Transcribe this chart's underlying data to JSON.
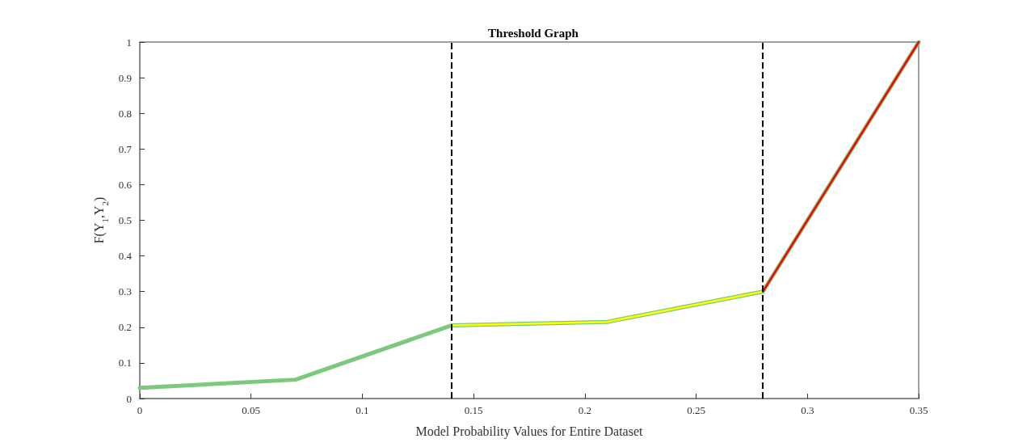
{
  "chart_data": {
    "type": "line",
    "title": "Threshold Graph",
    "xlabel": "Model Probability Values for Entire Dataset",
    "ylabel": "F(Y$_{1}$,Y$_{2}$)",
    "series": [
      {
        "color": "#7cc87c",
        "x": [
          0,
          0.07,
          0.14,
          0.21,
          0.28,
          0.35
        ],
        "values": [
          0.03,
          0.053,
          0.205,
          0.215,
          0.3,
          1.0
        ]
      },
      {
        "color": "#ffff00",
        "x": [
          0.14,
          0.21,
          0.28
        ],
        "values": [
          0.205,
          0.215,
          0.3
        ]
      },
      {
        "color": "#ff0000",
        "x": [
          0.28,
          0.35
        ],
        "values": [
          0.3,
          1.0
        ]
      }
    ],
    "ref_lines": [
      {
        "axis": "x",
        "value": 0.14,
        "color": "#000000",
        "line_style": "dashed"
      },
      {
        "axis": "x",
        "value": 0.28,
        "color": "#000000",
        "line_style": "dashed"
      }
    ],
    "xlim": [
      0,
      0.35
    ],
    "xticks": [
      0,
      0.05,
      0.1,
      0.15,
      0.2,
      0.25,
      0.3,
      0.35
    ],
    "ylim": [
      0,
      1
    ],
    "yticks": [
      0,
      0.1,
      0.2,
      0.3,
      0.4,
      0.5,
      0.6,
      0.7,
      0.8,
      0.9,
      1
    ],
    "grid": false,
    "marker": "none",
    "line_style": "solid"
  }
}
